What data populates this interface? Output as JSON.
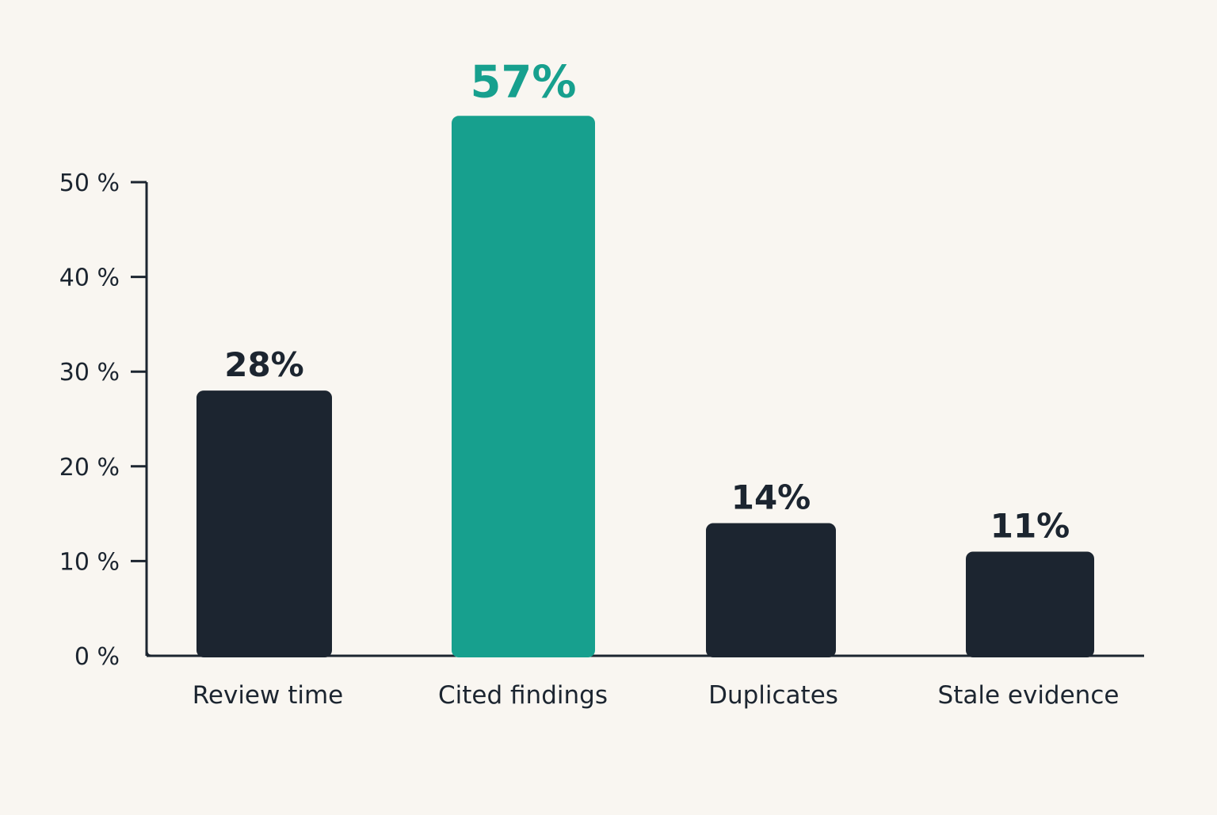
{
  "chart_data": {
    "type": "bar",
    "title": "",
    "xlabel": "",
    "ylabel": "",
    "categories": [
      "Review time",
      "Cited findings",
      "Duplicates",
      "Stale evidence"
    ],
    "values": [
      28,
      57,
      14,
      11
    ],
    "value_labels": [
      "28%",
      "57%",
      "14%",
      "11%"
    ],
    "highlight_index": 1,
    "ylim": [
      0,
      50
    ],
    "yticks": [
      0,
      10,
      20,
      30,
      40,
      50
    ],
    "ytick_labels": [
      "0 %",
      "10 %",
      "20 %",
      "30 %",
      "40 %",
      "50 %"
    ],
    "grid": false,
    "legend": "none",
    "colors": {
      "background": "#f9f6f1",
      "bar": "#1c2530",
      "highlight": "#17a08e",
      "axis": "#1c2530",
      "text": "#1c2530"
    }
  }
}
